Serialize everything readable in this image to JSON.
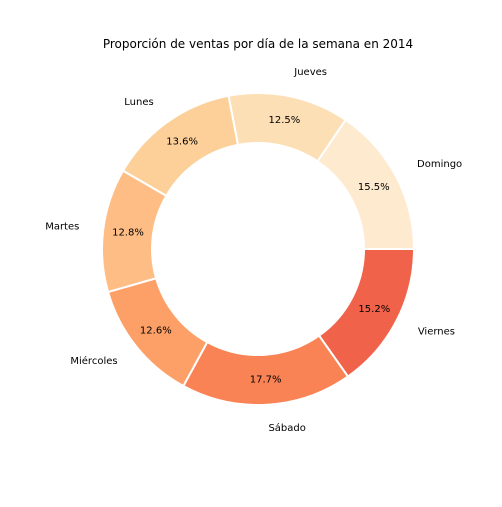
{
  "chart_data": {
    "type": "pie",
    "variant": "donut",
    "title": "Proporción de ventas por día de la semana en 2014",
    "categories": [
      "Domingo",
      "Jueves",
      "Lunes",
      "Martes",
      "Miércoles",
      "Sábado",
      "Viernes"
    ],
    "values": [
      15.5,
      12.5,
      13.6,
      12.8,
      12.6,
      17.7,
      15.2
    ],
    "percent_labels": [
      "15.5%",
      "12.5%",
      "13.6%",
      "12.8%",
      "12.6%",
      "17.7%",
      "15.2%"
    ],
    "colors": [
      "#feeacf",
      "#fddfb5",
      "#fdd09a",
      "#fdbd85",
      "#fda068",
      "#f98355",
      "#f0624a"
    ],
    "start_angle_deg": 0,
    "direction": "counterclockwise",
    "legend": "none",
    "grid": false
  }
}
